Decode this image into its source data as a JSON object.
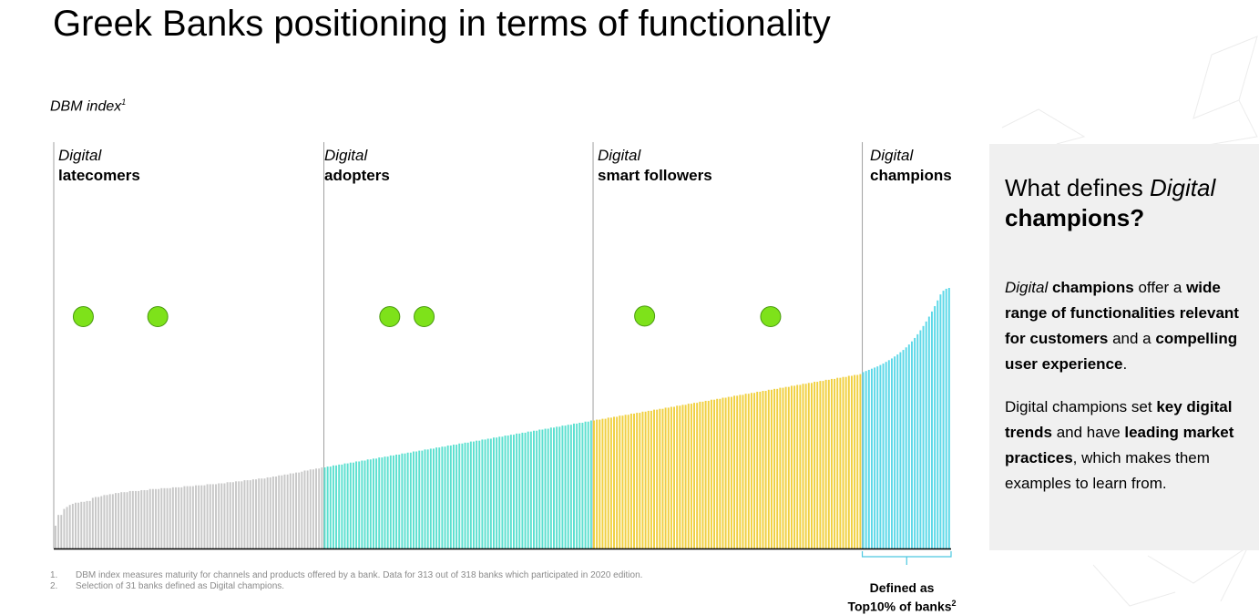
{
  "title": "Greek Banks positioning in terms of functionality",
  "chart_data": {
    "type": "bar",
    "ylabel": "DBM index",
    "ylabel_sup": "1",
    "segments": [
      {
        "line1": "Digital",
        "line2": "latecomers",
        "color": "#c8c8c8",
        "values": [
          8.0,
          11.8,
          11.8,
          13.9,
          14.6,
          15.3,
          15.7,
          16.1,
          16.1,
          16.4,
          16.4,
          16.7,
          16.7,
          17.8,
          18.1,
          18.1,
          18.4,
          18.8,
          18.8,
          19.1,
          19.1,
          19.5,
          19.5,
          19.8,
          19.8,
          19.8,
          20.2,
          20.2,
          20.2,
          20.2,
          20.5,
          20.5,
          20.5,
          20.9,
          20.9,
          20.9,
          20.9,
          21.2,
          21.2,
          21.2,
          21.2,
          21.5,
          21.5,
          21.5,
          21.5,
          21.9,
          21.9,
          21.9,
          21.9,
          22.2,
          22.2,
          22.2,
          22.2,
          22.6,
          22.6,
          22.6,
          22.6,
          22.9,
          22.9,
          22.9,
          23.3,
          23.3,
          23.3,
          23.6,
          23.6,
          23.6,
          24.0,
          24.0,
          24.0,
          24.3,
          24.3,
          24.6,
          24.6,
          24.6,
          25.0,
          25.0,
          25.3,
          25.3,
          25.7,
          25.7,
          26.0,
          26.0,
          26.4,
          26.4,
          26.7,
          26.7,
          27.0,
          27.4,
          27.4,
          27.8,
          27.8,
          28.1,
          28.1,
          28.5
        ]
      },
      {
        "line1": "Digital",
        "line2": "adopters",
        "color": "#5ce0d0",
        "values": [
          28.5,
          28.8,
          28.8,
          29.2,
          29.2,
          29.5,
          29.5,
          29.9,
          29.9,
          30.2,
          30.2,
          30.6,
          30.6,
          30.9,
          30.9,
          31.3,
          31.3,
          31.6,
          31.6,
          32.0,
          32.0,
          32.3,
          32.3,
          32.7,
          32.7,
          33.0,
          33.0,
          33.4,
          33.4,
          33.7,
          33.7,
          34.1,
          34.1,
          34.4,
          34.4,
          34.8,
          34.8,
          35.1,
          35.1,
          35.5,
          35.5,
          35.8,
          35.8,
          36.2,
          36.2,
          36.5,
          36.5,
          36.9,
          36.9,
          37.2,
          37.2,
          37.6,
          37.6,
          37.9,
          37.9,
          38.3,
          38.3,
          38.6,
          38.6,
          39.0,
          39.0,
          39.3,
          39.3,
          39.7,
          39.7,
          40.0,
          40.0,
          40.4,
          40.4,
          40.7,
          40.7,
          41.1,
          41.1,
          41.4,
          41.4,
          41.8,
          41.8,
          42.1,
          42.1,
          42.5,
          42.5,
          42.8,
          42.8,
          43.2,
          43.2,
          43.5,
          43.5,
          43.9,
          43.9,
          44.2,
          44.2,
          44.6,
          44.6,
          45.0
        ]
      },
      {
        "line1": "Digital",
        "line2": "smart followers",
        "color": "#f0d040",
        "values": [
          45.0,
          45.3,
          45.3,
          45.6,
          45.6,
          46.0,
          46.0,
          46.3,
          46.3,
          46.7,
          46.7,
          47.0,
          47.0,
          47.4,
          47.4,
          47.7,
          47.7,
          48.1,
          48.1,
          48.4,
          48.4,
          48.8,
          48.8,
          49.1,
          49.1,
          49.5,
          49.5,
          49.8,
          49.8,
          50.2,
          50.2,
          50.5,
          50.5,
          50.9,
          50.9,
          51.2,
          51.2,
          51.6,
          51.6,
          51.9,
          51.9,
          52.3,
          52.3,
          52.6,
          52.6,
          53.0,
          53.0,
          53.3,
          53.3,
          53.7,
          53.7,
          54.0,
          54.0,
          54.4,
          54.4,
          54.7,
          54.7,
          55.1,
          55.1,
          55.4,
          55.4,
          55.8,
          55.8,
          56.1,
          56.1,
          56.5,
          56.5,
          56.8,
          56.8,
          57.2,
          57.2,
          57.5,
          57.5,
          57.9,
          57.9,
          58.2,
          58.2,
          58.6,
          58.6,
          58.9,
          58.9,
          59.3,
          59.3,
          59.6,
          59.6,
          60.0,
          60.0,
          60.3,
          60.3,
          60.7,
          60.7,
          61.0,
          61.0,
          61.3
        ]
      },
      {
        "line1": "Digital",
        "line2": "champions",
        "color": "#5cd8e8",
        "values": [
          62.0,
          62.4,
          62.8,
          63.2,
          63.6,
          64.0,
          64.5,
          65.0,
          65.6,
          66.2,
          66.8,
          67.5,
          68.2,
          69.0,
          69.8,
          70.7,
          71.7,
          72.8,
          74.0,
          75.3,
          76.7,
          78.2,
          79.8,
          81.5,
          83.3,
          85.2,
          87.2,
          89.3,
          90.6,
          91.3,
          91.6
        ]
      }
    ],
    "ylim": [
      0,
      100
    ],
    "dots": [
      {
        "x_index": 10,
        "value": 81.5
      },
      {
        "x_index": 36,
        "value": 81.5
      },
      {
        "x_index": 117,
        "value": 81.5
      },
      {
        "x_index": 129,
        "value": 81.5
      },
      {
        "x_index": 206,
        "value": 81.7
      },
      {
        "x_index": 250,
        "value": 81.5
      }
    ],
    "dot_color": "#7ee21a",
    "bracket_label_line1": "Defined as",
    "bracket_label_line2": "Top10% of banks",
    "bracket_label_sup": "2"
  },
  "footnotes": [
    {
      "num": "1.",
      "text": "DBM index measures maturity for channels and products offered by a bank. Data for 313 out of 318 banks which participated in 2020 edition."
    },
    {
      "num": "2.",
      "text": "Selection of 31 banks defined as Digital champions."
    }
  ],
  "panel": {
    "title_a": "What defines ",
    "title_b": "Digital",
    "title_c": "champions?",
    "p1": {
      "a": "Digital",
      "b": " champions",
      "c": " offer a ",
      "d": "wide range of functionalities relevant for customers",
      "e": " and a ",
      "f": "compelling user experience",
      "g": "."
    },
    "p2": {
      "a": "Digital champions set ",
      "b": "key digital trends",
      "c": " and have ",
      "d": "leading market practices",
      "e": ", which makes them examples to learn from."
    }
  }
}
